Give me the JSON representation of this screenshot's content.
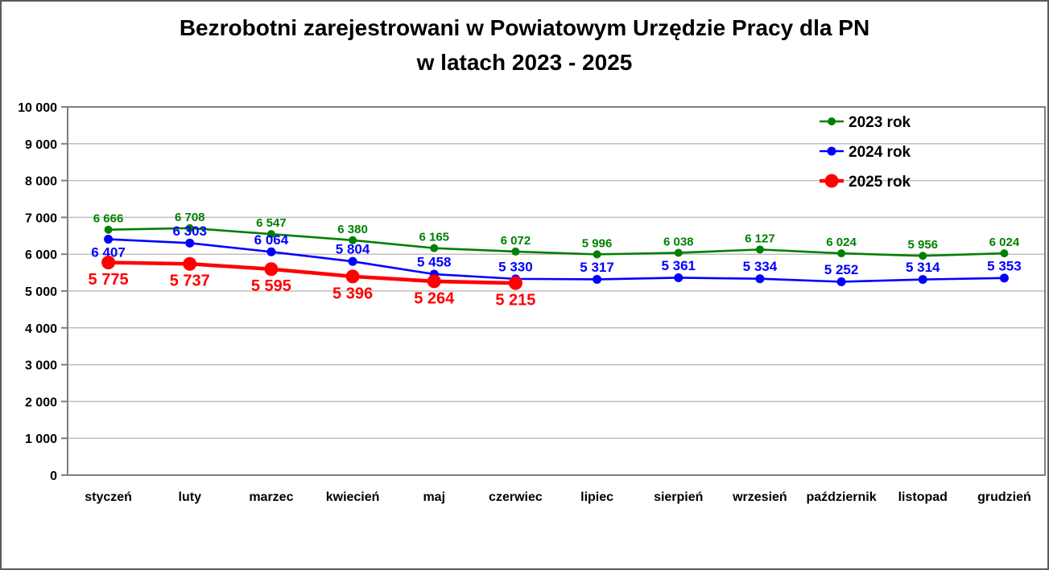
{
  "title": {
    "line1": "Bezrobotni zarejestrowani w Powiatowym Urzędzie Pracy dla PN",
    "line2": "w latach 2023 - 2025"
  },
  "chart_data": {
    "type": "line",
    "categories": [
      "styczeń",
      "luty",
      "marzec",
      "kwiecień",
      "maj",
      "czerwiec",
      "lipiec",
      "sierpień",
      "wrzesień",
      "październik",
      "listopad",
      "grudzień"
    ],
    "series": [
      {
        "name": "2023 rok",
        "color": "#008000",
        "values": [
          6666,
          6708,
          6547,
          6380,
          6165,
          6072,
          5996,
          6038,
          6127,
          6024,
          5956,
          6024
        ],
        "line_width": 2.6,
        "marker_radius": 5,
        "label_font_size": 15,
        "label_placement": "above",
        "label_overrides": {}
      },
      {
        "name": "2024 rok",
        "color": "#0000ff",
        "values": [
          6407,
          6303,
          6064,
          5804,
          5458,
          5330,
          5317,
          5361,
          5334,
          5252,
          5314,
          5353
        ],
        "line_width": 2.6,
        "marker_radius": 5.5,
        "label_font_size": 17,
        "label_placement": "above",
        "label_overrides": {
          "0": "below"
        }
      },
      {
        "name": "2025 rok",
        "color": "#ff0000",
        "values": [
          5775,
          5737,
          5595,
          5396,
          5264,
          5215
        ],
        "line_width": 4.6,
        "marker_radius": 8.5,
        "label_font_size": 20,
        "label_placement": "below",
        "label_overrides": {}
      }
    ],
    "ylim": [
      0,
      10000
    ],
    "ytick_step": 1000,
    "ytick_labels": [
      "0",
      "1 000",
      "2 000",
      "3 000",
      "4 000",
      "5 000",
      "6 000",
      "7 000",
      "8 000",
      "9 000",
      "10 000"
    ],
    "grid": "horizontal",
    "gridline_color": "#bfbfbf",
    "plot_border_color": "#7f7f7f",
    "legend_position": "top-right",
    "legend_labels": [
      "2023 rok",
      "2024 rok",
      "2025 rok"
    ]
  }
}
